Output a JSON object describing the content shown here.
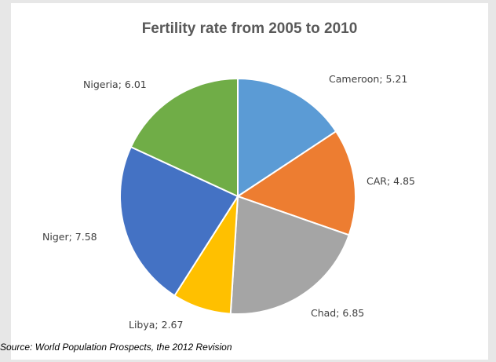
{
  "chart_data": {
    "type": "pie",
    "title": "Fertility rate from 2005 to 2010",
    "categories": [
      "Cameroon",
      "CAR",
      "Chad",
      "Libya",
      "Niger",
      "Nigeria"
    ],
    "values": [
      5.21,
      4.85,
      6.85,
      2.67,
      7.58,
      6.01
    ],
    "data_labels": [
      "Cameroon; 5.21",
      "CAR; 4.85",
      "Chad; 6.85",
      "Libya; 2.67",
      "Niger; 7.58",
      "Nigeria; 6.01"
    ],
    "colors": [
      "#5b9bd5",
      "#ed7d31",
      "#a5a5a5",
      "#ffc000",
      "#4472c4",
      "#70ad47"
    ],
    "start_angle_deg": 0,
    "direction": "clockwise",
    "legend": "none"
  },
  "source": "Source: World Population Prospects, the 2012 Revision"
}
